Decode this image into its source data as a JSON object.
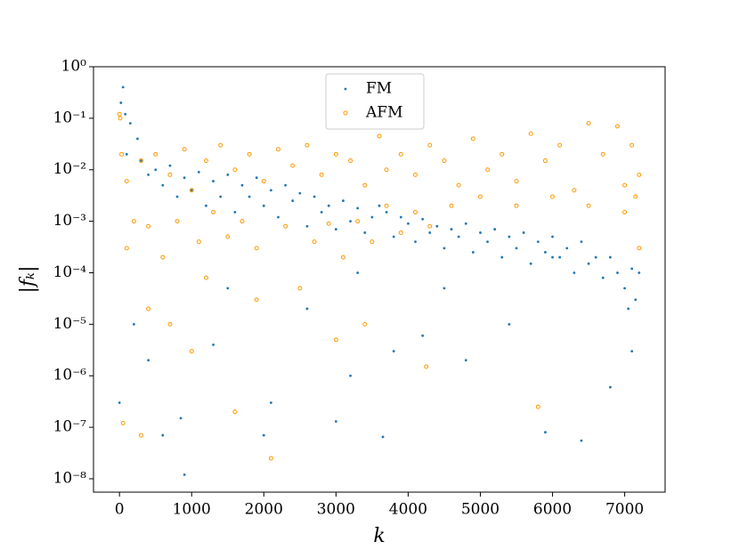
{
  "chart_data": {
    "type": "scatter",
    "xlabel": "k",
    "ylabel": "|fₖ|",
    "xlim": [
      -360,
      7560
    ],
    "ylim": [
      5.5e-09,
      1
    ],
    "yscale": "log",
    "xticks": [
      0,
      1000,
      2000,
      3000,
      4000,
      5000,
      6000,
      7000
    ],
    "yticks": [
      {
        "value": 1e-08,
        "label": "10⁻⁸"
      },
      {
        "value": 1e-07,
        "label": "10⁻⁷"
      },
      {
        "value": 1e-06,
        "label": "10⁻⁶"
      },
      {
        "value": 1e-05,
        "label": "10⁻⁵"
      },
      {
        "value": 0.0001,
        "label": "10⁻⁴"
      },
      {
        "value": 0.001,
        "label": "10⁻³"
      },
      {
        "value": 0.01,
        "label": "10⁻²"
      },
      {
        "value": 0.1,
        "label": "10⁻¹"
      },
      {
        "value": 1,
        "label": "10⁰"
      }
    ],
    "legend": "upper center",
    "series": [
      {
        "name": "FM",
        "color": "#1f77b4",
        "marker": "dot",
        "x": [
          50,
          20,
          80,
          150,
          250,
          100,
          300,
          400,
          500,
          600,
          700,
          800,
          900,
          1000,
          1100,
          1200,
          1300,
          1400,
          1500,
          1600,
          1700,
          1800,
          1900,
          2000,
          2100,
          2200,
          2300,
          2400,
          2500,
          2600,
          2700,
          2800,
          2900,
          3000,
          3100,
          3200,
          3300,
          3400,
          3500,
          3600,
          3700,
          3800,
          3900,
          4000,
          4100,
          4200,
          4300,
          4400,
          4500,
          4600,
          4700,
          4800,
          4900,
          5000,
          5100,
          5200,
          5300,
          5400,
          5500,
          5600,
          5700,
          5800,
          5900,
          6000,
          6100,
          6200,
          6300,
          6400,
          6500,
          6600,
          6700,
          6800,
          6900,
          7000,
          7100,
          7150,
          7200,
          0,
          200,
          400,
          600,
          900,
          850,
          1300,
          1500,
          2000,
          2100,
          2600,
          3000,
          3200,
          3650,
          3800,
          4200,
          4800,
          5400,
          5900,
          6400,
          6800,
          7100,
          3300,
          4500,
          6000,
          7050
        ],
        "values": [
          0.4,
          0.2,
          0.12,
          0.08,
          0.04,
          0.02,
          0.015,
          0.008,
          0.01,
          0.005,
          0.012,
          0.003,
          0.007,
          0.004,
          0.009,
          0.002,
          0.006,
          0.003,
          0.008,
          0.0015,
          0.005,
          0.003,
          0.007,
          0.002,
          0.004,
          0.0012,
          0.005,
          0.0025,
          0.0035,
          0.0008,
          0.003,
          0.0015,
          0.002,
          0.0007,
          0.0025,
          0.001,
          0.0018,
          0.0006,
          0.0012,
          0.002,
          0.0015,
          0.0005,
          0.0012,
          0.0009,
          0.0004,
          0.0011,
          0.0006,
          0.0008,
          0.0003,
          0.0007,
          0.0005,
          0.0009,
          0.00025,
          0.0006,
          0.0004,
          0.0007,
          0.0002,
          0.0005,
          0.0003,
          0.0006,
          0.00015,
          0.0004,
          0.00025,
          0.0005,
          0.0002,
          0.0003,
          0.0001,
          0.0004,
          0.00015,
          0.0002,
          8e-05,
          0.0002,
          0.0001,
          5e-05,
          0.00012,
          3e-05,
          0.0001,
          3e-07,
          1e-05,
          2e-06,
          7e-08,
          1.2e-08,
          1.5e-07,
          4e-06,
          5e-05,
          7e-08,
          3e-07,
          2e-05,
          1.3e-07,
          1e-06,
          6.5e-08,
          3e-06,
          6e-06,
          2e-06,
          1e-05,
          8e-08,
          5.5e-08,
          6e-07,
          3e-06,
          0.0001,
          5e-05,
          0.0002,
          2e-05
        ]
      },
      {
        "name": "AFM",
        "color": "#ff9900",
        "marker": "open-circle",
        "x": [
          0,
          10,
          30,
          100,
          50,
          300,
          200,
          300,
          500,
          700,
          900,
          1000,
          1200,
          1400,
          1600,
          1800,
          2000,
          2200,
          2400,
          2600,
          2800,
          3000,
          3200,
          3400,
          3600,
          3700,
          3900,
          4100,
          4300,
          4500,
          4700,
          4900,
          5100,
          5300,
          5500,
          5700,
          5900,
          6100,
          6300,
          6500,
          6700,
          6900,
          7000,
          7100,
          7200,
          7150,
          100,
          400,
          600,
          800,
          1100,
          1300,
          1500,
          1700,
          1900,
          2100,
          2300,
          2500,
          2700,
          2900,
          3100,
          3300,
          3500,
          3700,
          3900,
          4100,
          4300,
          4600,
          5000,
          5500,
          6000,
          6500,
          7000,
          7200,
          700,
          1000,
          1600,
          1900,
          3000,
          3400,
          4250,
          5800,
          400,
          1200
        ],
        "values": [
          0.12,
          0.1,
          0.02,
          0.006,
          1.2e-07,
          7e-08,
          0.001,
          0.015,
          0.02,
          0.008,
          0.025,
          0.004,
          0.015,
          0.03,
          0.01,
          0.02,
          0.006,
          0.025,
          0.012,
          0.03,
          0.008,
          0.02,
          0.015,
          0.005,
          0.045,
          0.01,
          0.02,
          0.008,
          0.03,
          0.015,
          0.005,
          0.04,
          0.01,
          0.02,
          0.006,
          0.05,
          0.015,
          0.03,
          0.004,
          0.08,
          0.02,
          0.07,
          0.005,
          0.03,
          0.008,
          0.003,
          0.0003,
          0.0008,
          0.0002,
          0.001,
          0.0004,
          0.0015,
          0.0005,
          0.001,
          0.0003,
          2.5e-08,
          0.0008,
          5e-05,
          0.0004,
          0.0009,
          0.0002,
          0.001,
          0.0004,
          0.002,
          0.0006,
          0.0015,
          0.0008,
          0.002,
          0.003,
          0.002,
          0.003,
          0.002,
          0.0015,
          0.0003,
          1e-05,
          3e-06,
          2e-07,
          3e-05,
          5e-06,
          1e-05,
          1.5e-06,
          2.5e-07,
          2e-05,
          8e-05
        ]
      }
    ]
  }
}
